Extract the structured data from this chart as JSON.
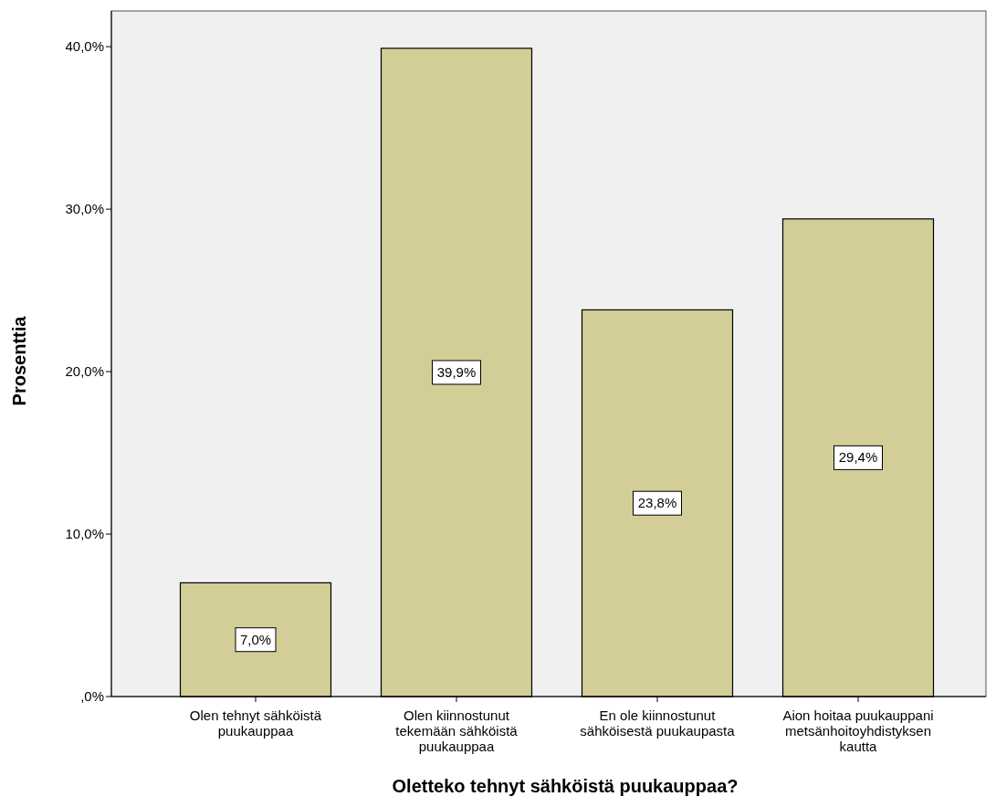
{
  "chart_data": {
    "type": "bar",
    "xlabel": "Oletteko tehnyt sähköistä puukauppaa?",
    "ylabel": "Prosenttia",
    "categories": [
      "Olen tehnyt sähköistä puukauppaa",
      "Olen kiinnostunut tekemään sähköistä puukauppaa",
      "En ole kiinnostunut sähköisestä puukaupasta",
      "Aion hoitaa puukauppani metsänhoitoyhdistyksen kautta"
    ],
    "values": [
      7.0,
      39.9,
      23.8,
      29.4
    ],
    "value_labels": [
      "7,0%",
      "39,9%",
      "23,8%",
      "29,4%"
    ],
    "color": "#d3ce97",
    "ylim": [
      0,
      42.2
    ],
    "yticks": [
      {
        "value": 0,
        "label": ",0%"
      },
      {
        "value": 10,
        "label": "10,0%"
      },
      {
        "value": 20,
        "label": "20,0%"
      },
      {
        "value": 30,
        "label": "30,0%"
      },
      {
        "value": 40,
        "label": "40,0%"
      }
    ],
    "grid": false
  }
}
